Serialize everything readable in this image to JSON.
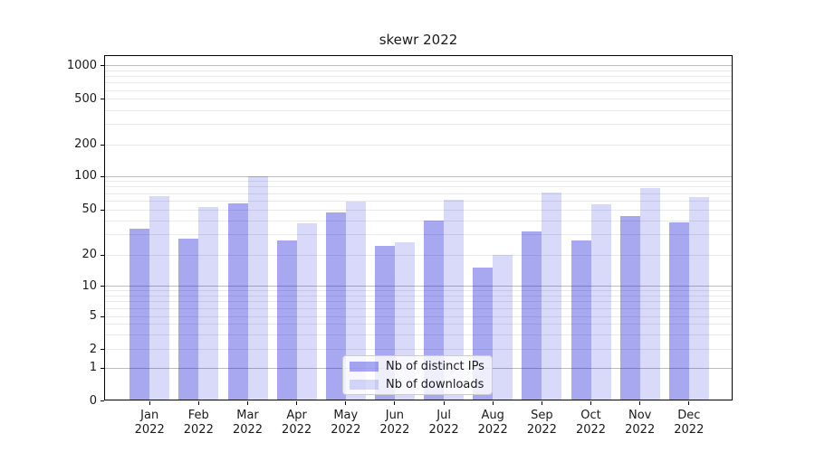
{
  "title": "skewr 2022",
  "chart_data": {
    "type": "bar",
    "title": "skewr 2022",
    "yscale": "symlog-like (0 shown at axis bottom, log spacing above)",
    "yticks": [
      0,
      1,
      2,
      5,
      10,
      20,
      50,
      100,
      200,
      500,
      1000
    ],
    "ylim": [
      0,
      1250
    ],
    "grid": true,
    "legend_position": "lower center",
    "categories": [
      "Jan",
      "Feb",
      "Mar",
      "Apr",
      "May",
      "Jun",
      "Jul",
      "Aug",
      "Sep",
      "Oct",
      "Nov",
      "Dec"
    ],
    "category_year": "2022",
    "series": [
      {
        "name": "Nb of distinct IPs",
        "values": [
          34,
          28,
          57,
          27,
          47,
          24,
          40,
          15,
          32,
          27,
          44,
          39
        ]
      },
      {
        "name": "Nb of downloads",
        "values": [
          66,
          53,
          101,
          38,
          59,
          26,
          62,
          20,
          71,
          56,
          78,
          65
        ]
      }
    ]
  },
  "colors": {
    "bar_rgb": "0,0,213",
    "ips_alpha": 0.34,
    "downloads_alpha": 0.15,
    "grid_major": "#bdbdbd",
    "grid_minor": "#e9e9e9",
    "text": "#1a1a1a",
    "spine": "#000000",
    "legend_border": "#cccccc"
  }
}
